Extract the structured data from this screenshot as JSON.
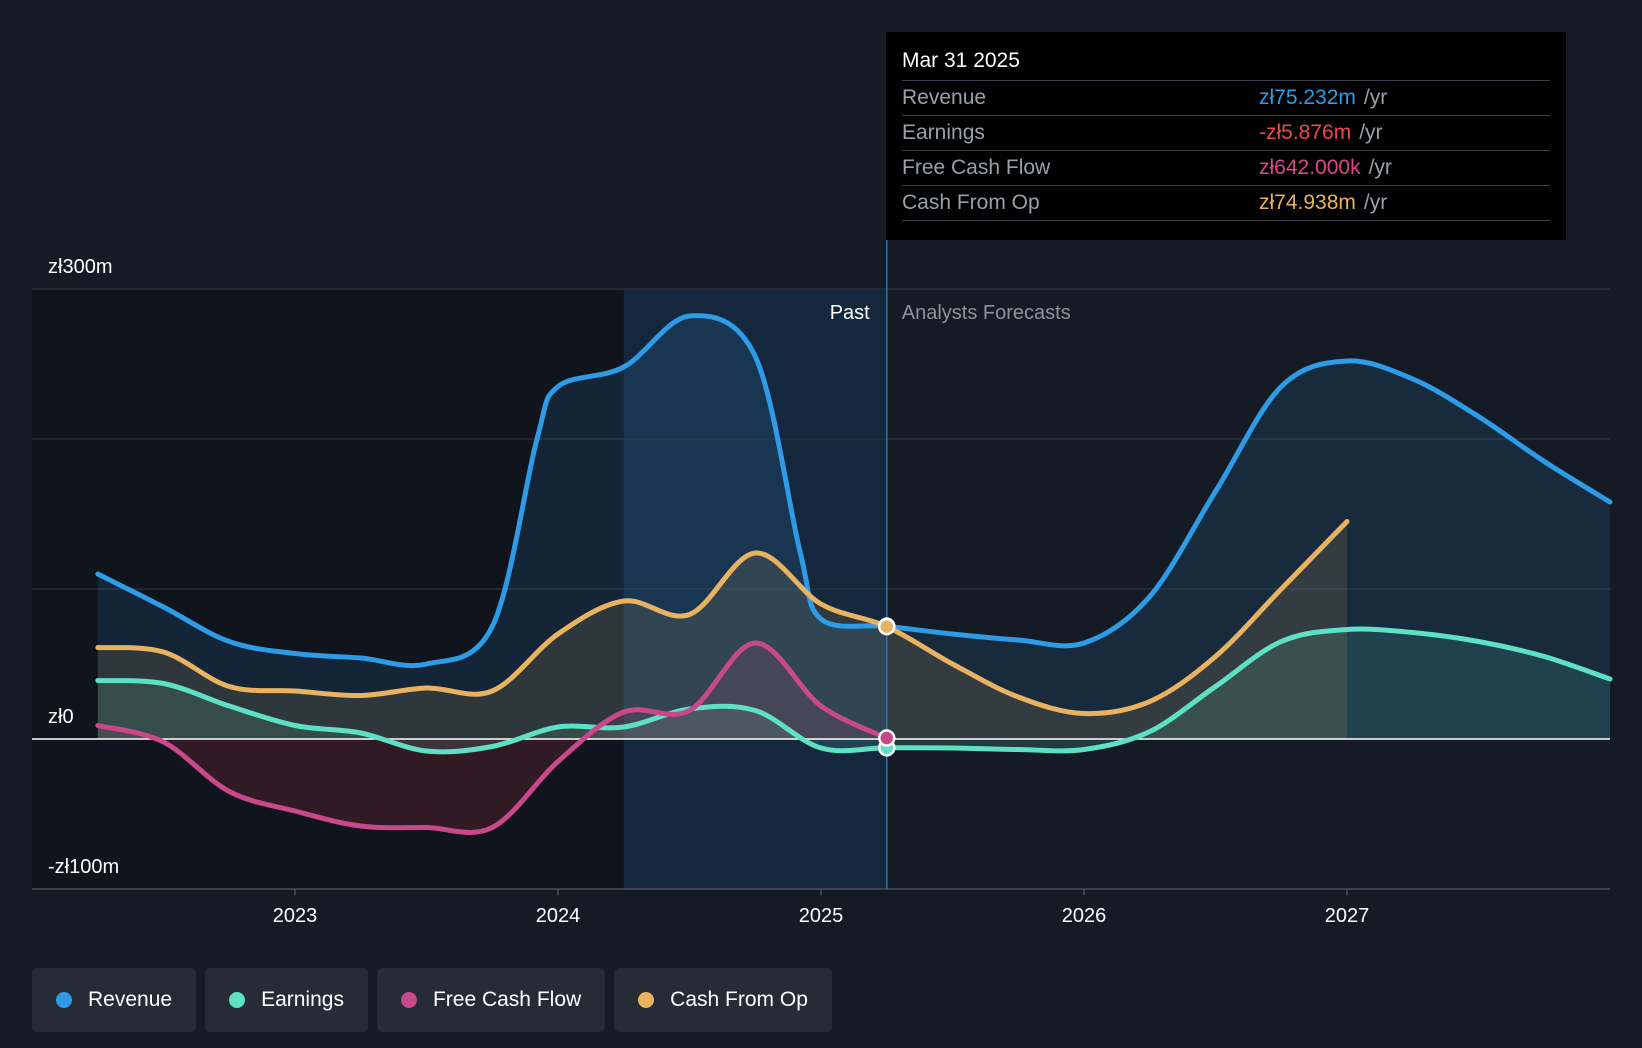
{
  "chart_data": {
    "type": "area",
    "y_unit": "zł millions",
    "y_tick_labels": [
      "zł300m",
      "zł0",
      "-zł100m"
    ],
    "ylim": [
      -100,
      300
    ],
    "x_tick_labels": [
      "2023",
      "2024",
      "2025",
      "2026",
      "2027"
    ],
    "xlim": [
      2022.0,
      2028.0
    ],
    "past_label": "Past",
    "forecast_label": "Analysts Forecasts",
    "past_end_x": 2025.25,
    "highlight_start_x": 2024.25,
    "series": [
      {
        "name": "Revenue",
        "color": "#2e9be6",
        "x": [
          2022.25,
          2022.5,
          2022.75,
          2023.0,
          2023.25,
          2023.5,
          2023.75,
          2023.92,
          2024.0,
          2024.25,
          2024.5,
          2024.75,
          2024.92,
          2025.0,
          2025.25,
          2025.5,
          2025.75,
          2026.0,
          2026.25,
          2026.5,
          2026.75,
          2027.0,
          2027.25,
          2027.5,
          2027.75,
          2028.0
        ],
        "values": [
          110,
          88,
          65,
          57,
          54,
          50,
          75,
          200,
          235,
          248,
          282,
          255,
          125,
          80,
          75.232,
          70,
          66,
          64,
          95,
          165,
          235,
          252,
          240,
          215,
          185,
          158
        ]
      },
      {
        "name": "Earnings",
        "color": "#5ee0c4",
        "x": [
          2022.25,
          2022.5,
          2022.75,
          2023.0,
          2023.25,
          2023.5,
          2023.75,
          2024.0,
          2024.25,
          2024.5,
          2024.75,
          2025.0,
          2025.25,
          2025.5,
          2025.75,
          2026.0,
          2026.25,
          2026.5,
          2026.75,
          2027.0,
          2027.25,
          2027.5,
          2027.75,
          2028.0
        ],
        "values": [
          39,
          37,
          22,
          9,
          4,
          -8,
          -5,
          8,
          8,
          20,
          19,
          -6,
          -5.876,
          -6,
          -7,
          -7,
          5,
          35,
          65,
          73,
          71,
          65,
          55,
          40
        ]
      },
      {
        "name": "Free Cash Flow",
        "color": "#c9488a",
        "x": [
          2022.25,
          2022.5,
          2022.75,
          2023.0,
          2023.25,
          2023.5,
          2023.75,
          2024.0,
          2024.25,
          2024.5,
          2024.75,
          2025.0,
          2025.25
        ],
        "values": [
          9,
          -2,
          -35,
          -48,
          -58,
          -59,
          -59,
          -15,
          18,
          19,
          64,
          22,
          0.642
        ]
      },
      {
        "name": "Cash From Op",
        "color": "#e8b260",
        "x": [
          2022.25,
          2022.5,
          2022.75,
          2023.0,
          2023.25,
          2023.5,
          2023.75,
          2024.0,
          2024.25,
          2024.5,
          2024.75,
          2025.0,
          2025.25,
          2025.5,
          2025.75,
          2026.0,
          2026.25,
          2026.5,
          2026.75,
          2027.0
        ],
        "values": [
          61,
          58,
          35,
          32,
          29,
          34,
          32,
          70,
          92,
          83,
          124,
          90,
          74.938,
          50,
          28,
          17,
          25,
          55,
          100,
          145
        ]
      }
    ]
  },
  "tooltip": {
    "date": "Mar 31 2025",
    "unit": "/yr",
    "rows": [
      {
        "name": "Revenue",
        "value": "zł75.232m",
        "color": "#2e9be6"
      },
      {
        "name": "Earnings",
        "value": "-zł5.876m",
        "color": "#e84b4b"
      },
      {
        "name": "Free Cash Flow",
        "value": "zł642.000k",
        "color": "#d9488f"
      },
      {
        "name": "Cash From Op",
        "value": "zł74.938m",
        "color": "#e8b260"
      }
    ]
  },
  "legend": [
    {
      "label": "Revenue",
      "color": "#2e9be6"
    },
    {
      "label": "Earnings",
      "color": "#5ee0c4"
    },
    {
      "label": "Free Cash Flow",
      "color": "#c9488a"
    },
    {
      "label": "Cash From Op",
      "color": "#e8b260"
    }
  ]
}
